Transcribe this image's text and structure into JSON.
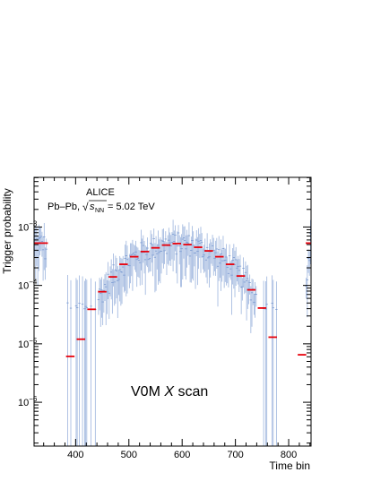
{
  "chart_data": {
    "type": "scatter",
    "title": "",
    "experiment": "ALICE",
    "collision": "Pb–Pb,",
    "energy_sqrt": "√",
    "energy_s": "s",
    "energy_sub": "NN",
    "energy_value": "= 5.02 TeV",
    "annotation_prefix": "V0M ",
    "annotation_var": "X",
    "annotation_suffix": " scan",
    "xlabel": "Time bin",
    "ylabel": "Trigger probability",
    "xlim": [
      322,
      842
    ],
    "ylim_log10": [
      -6.75,
      -2.15
    ],
    "log_y": true,
    "grid": false,
    "xticks": [
      {
        "v": 400,
        "label": "400"
      },
      {
        "v": 500,
        "label": "500"
      },
      {
        "v": 600,
        "label": "600"
      },
      {
        "v": 700,
        "label": "700"
      },
      {
        "v": 800,
        "label": "800"
      }
    ],
    "yticks": [
      {
        "exp": -6,
        "base": "10",
        "sup": "−6"
      },
      {
        "exp": -5,
        "base": "10",
        "sup": "−5"
      },
      {
        "exp": -4,
        "base": "10",
        "sup": "−4"
      },
      {
        "exp": -3,
        "base": "10",
        "sup": "−3"
      }
    ],
    "binned_series": {
      "name": "",
      "color": "#e8000b",
      "half_width": 8,
      "x": [
        325,
        340,
        390,
        410,
        430,
        450,
        470,
        490,
        510,
        530,
        550,
        570,
        590,
        610,
        630,
        650,
        670,
        690,
        710,
        730,
        750,
        770,
        825,
        840
      ],
      "y": [
        0.00053,
        0.00053,
        6.1e-06,
        1.2e-05,
        3.9e-05,
        7.8e-05,
        0.00014,
        0.00023,
        0.00031,
        0.00038,
        0.00044,
        0.00049,
        0.00052,
        0.0005,
        0.00045,
        0.00039,
        0.00031,
        0.00023,
        0.000145,
        8.4e-05,
        4.1e-05,
        1.3e-05,
        6.5e-06,
        0.00053
      ]
    },
    "fine_series": {
      "name": "",
      "color": "#7b9bd2",
      "step": 2,
      "x_range": [
        323,
        841
      ]
    }
  }
}
